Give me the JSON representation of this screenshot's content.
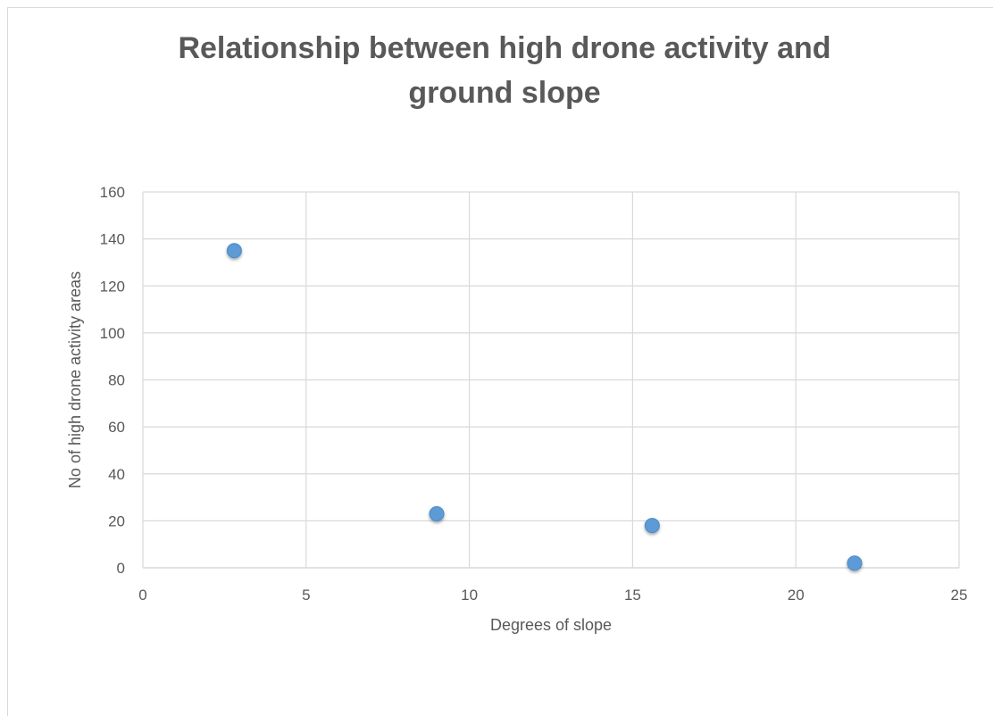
{
  "chart_data": {
    "type": "scatter",
    "title": "Relationship between high drone activity and ground slope",
    "title_lines": [
      "Relationship between high drone activity and",
      "ground slope"
    ],
    "xlabel": "Degrees of slope",
    "ylabel": "No of high drone activity areas",
    "xlim": [
      0,
      25
    ],
    "ylim": [
      0,
      160
    ],
    "x_ticks": [
      0,
      5,
      10,
      15,
      20,
      25
    ],
    "y_ticks": [
      0,
      20,
      40,
      60,
      80,
      100,
      120,
      140,
      160
    ],
    "grid": true,
    "legend": "none",
    "marker_color": "#5b9bd5",
    "series": [
      {
        "x": [
          2.8,
          9.0,
          15.6,
          21.8
        ],
        "y": [
          135,
          23,
          18,
          2
        ]
      }
    ]
  }
}
